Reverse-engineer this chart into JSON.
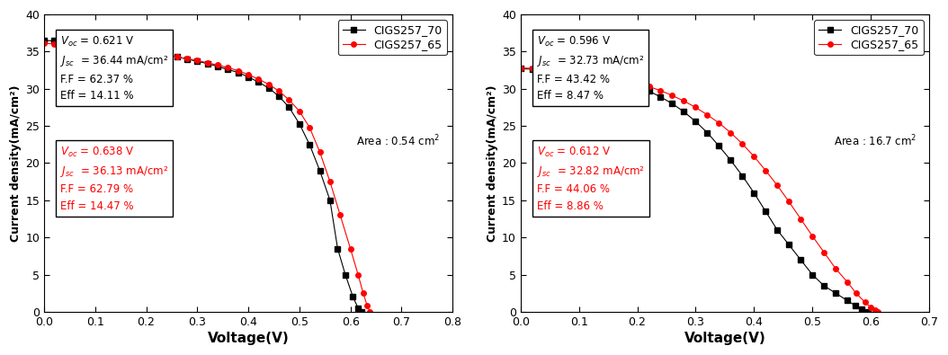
{
  "left": {
    "area_text": "Area : 0.54 cm",
    "xlabel": "Voltage(V)",
    "ylabel": "Current density(mA/cm²)",
    "xlim": [
      0.0,
      0.8
    ],
    "ylim": [
      0,
      40
    ],
    "xticks": [
      0.0,
      0.1,
      0.2,
      0.3,
      0.4,
      0.5,
      0.6,
      0.7,
      0.8
    ],
    "yticks": [
      0,
      5,
      10,
      15,
      20,
      25,
      30,
      35,
      40
    ],
    "series": [
      {
        "label": "CIGS257_70",
        "color": "black",
        "marker": "s",
        "V": [
          0.0,
          0.02,
          0.04,
          0.06,
          0.08,
          0.1,
          0.12,
          0.14,
          0.16,
          0.18,
          0.2,
          0.22,
          0.24,
          0.26,
          0.28,
          0.3,
          0.32,
          0.34,
          0.36,
          0.38,
          0.4,
          0.42,
          0.44,
          0.46,
          0.48,
          0.5,
          0.52,
          0.54,
          0.56,
          0.575,
          0.59,
          0.605,
          0.615,
          0.621
        ],
        "J": [
          36.5,
          36.45,
          36.4,
          36.3,
          36.2,
          36.1,
          36.0,
          35.8,
          35.6,
          35.4,
          35.2,
          34.9,
          34.6,
          34.3,
          34.0,
          33.7,
          33.4,
          33.0,
          32.6,
          32.2,
          31.6,
          30.9,
          30.1,
          29.0,
          27.5,
          25.3,
          22.5,
          19.0,
          15.0,
          8.5,
          5.0,
          2.0,
          0.5,
          0.0
        ]
      },
      {
        "label": "CIGS257_65",
        "color": "red",
        "marker": "o",
        "V": [
          0.0,
          0.02,
          0.04,
          0.06,
          0.08,
          0.1,
          0.12,
          0.14,
          0.16,
          0.18,
          0.2,
          0.22,
          0.24,
          0.26,
          0.28,
          0.3,
          0.32,
          0.34,
          0.36,
          0.38,
          0.4,
          0.42,
          0.44,
          0.46,
          0.48,
          0.5,
          0.52,
          0.54,
          0.56,
          0.58,
          0.6,
          0.615,
          0.625,
          0.633,
          0.638
        ],
        "J": [
          36.1,
          36.05,
          36.0,
          35.95,
          35.88,
          35.8,
          35.7,
          35.55,
          35.4,
          35.2,
          35.0,
          34.8,
          34.55,
          34.3,
          34.05,
          33.8,
          33.5,
          33.2,
          32.85,
          32.45,
          31.9,
          31.3,
          30.6,
          29.7,
          28.5,
          27.0,
          24.8,
          21.5,
          17.5,
          13.0,
          8.5,
          5.0,
          2.5,
          0.8,
          0.0
        ]
      }
    ],
    "box1_lines": [
      {
        "prefix": "V",
        "sub": "oc",
        "suffix": " = 0.621 V"
      },
      {
        "prefix": "J",
        "sub": "sc",
        "suffix": "  = 36.44 mA/cm²"
      },
      {
        "prefix": "F.F = 62.37 %",
        "sub": "",
        "suffix": ""
      },
      {
        "prefix": "Eff = 14.11 %",
        "sub": "",
        "suffix": ""
      }
    ],
    "box1_color": "black",
    "box2_lines": [
      {
        "prefix": "V",
        "sub": "oc",
        "suffix": " = 0.638 V"
      },
      {
        "prefix": "J",
        "sub": "sc",
        "suffix": "  = 36.13 mA/cm²"
      },
      {
        "prefix": "F.F = 62.79 %",
        "sub": "",
        "suffix": ""
      },
      {
        "prefix": "Eff = 14.47 %",
        "sub": "",
        "suffix": ""
      }
    ],
    "box2_color": "red"
  },
  "right": {
    "area_text": "Area : 16.7 cm",
    "xlabel": "Voltage(V)",
    "ylabel": "Current density(mA/cm²)",
    "xlim": [
      0.0,
      0.7
    ],
    "ylim": [
      0,
      40
    ],
    "xticks": [
      0.0,
      0.1,
      0.2,
      0.3,
      0.4,
      0.5,
      0.6,
      0.7
    ],
    "yticks": [
      0,
      5,
      10,
      15,
      20,
      25,
      30,
      35,
      40
    ],
    "series": [
      {
        "label": "CIGS257_70",
        "color": "black",
        "marker": "s",
        "V": [
          0.0,
          0.02,
          0.04,
          0.06,
          0.08,
          0.1,
          0.12,
          0.14,
          0.16,
          0.18,
          0.2,
          0.22,
          0.24,
          0.26,
          0.28,
          0.3,
          0.32,
          0.34,
          0.36,
          0.38,
          0.4,
          0.42,
          0.44,
          0.46,
          0.48,
          0.5,
          0.52,
          0.54,
          0.56,
          0.574,
          0.585,
          0.596
        ],
        "J": [
          32.7,
          32.65,
          32.55,
          32.45,
          32.3,
          32.1,
          31.85,
          31.55,
          31.2,
          30.8,
          30.3,
          29.7,
          28.9,
          28.0,
          26.9,
          25.6,
          24.1,
          22.3,
          20.4,
          18.3,
          16.0,
          13.5,
          11.0,
          9.0,
          7.0,
          5.0,
          3.5,
          2.5,
          1.5,
          0.8,
          0.3,
          0.0
        ]
      },
      {
        "label": "CIGS257_65",
        "color": "red",
        "marker": "o",
        "V": [
          0.0,
          0.02,
          0.04,
          0.06,
          0.08,
          0.1,
          0.12,
          0.14,
          0.16,
          0.18,
          0.2,
          0.22,
          0.24,
          0.26,
          0.28,
          0.3,
          0.32,
          0.34,
          0.36,
          0.38,
          0.4,
          0.42,
          0.44,
          0.46,
          0.48,
          0.5,
          0.52,
          0.54,
          0.56,
          0.575,
          0.59,
          0.6,
          0.608,
          0.612
        ],
        "J": [
          32.8,
          32.75,
          32.65,
          32.55,
          32.42,
          32.25,
          32.05,
          31.8,
          31.5,
          31.15,
          30.75,
          30.3,
          29.75,
          29.1,
          28.35,
          27.5,
          26.5,
          25.4,
          24.1,
          22.6,
          20.9,
          19.0,
          17.0,
          14.8,
          12.5,
          10.2,
          8.0,
          5.8,
          4.0,
          2.5,
          1.3,
          0.6,
          0.2,
          0.0
        ]
      }
    ],
    "box1_lines": [
      {
        "prefix": "V",
        "sub": "oc",
        "suffix": " = 0.596 V"
      },
      {
        "prefix": "J",
        "sub": "sc",
        "suffix": "  = 32.73 mA/cm²"
      },
      {
        "prefix": "F.F = 43.42 %",
        "sub": "",
        "suffix": ""
      },
      {
        "prefix": "Eff = 8.47 %",
        "sub": "",
        "suffix": ""
      }
    ],
    "box1_color": "black",
    "box2_lines": [
      {
        "prefix": "V",
        "sub": "oc",
        "suffix": " = 0.612 V"
      },
      {
        "prefix": "J",
        "sub": "sc",
        "suffix": "  = 32.82 mA/cm²"
      },
      {
        "prefix": "F.F = 44.06 %",
        "sub": "",
        "suffix": ""
      },
      {
        "prefix": "Eff = 8.86 %",
        "sub": "",
        "suffix": ""
      }
    ],
    "box2_color": "red"
  }
}
